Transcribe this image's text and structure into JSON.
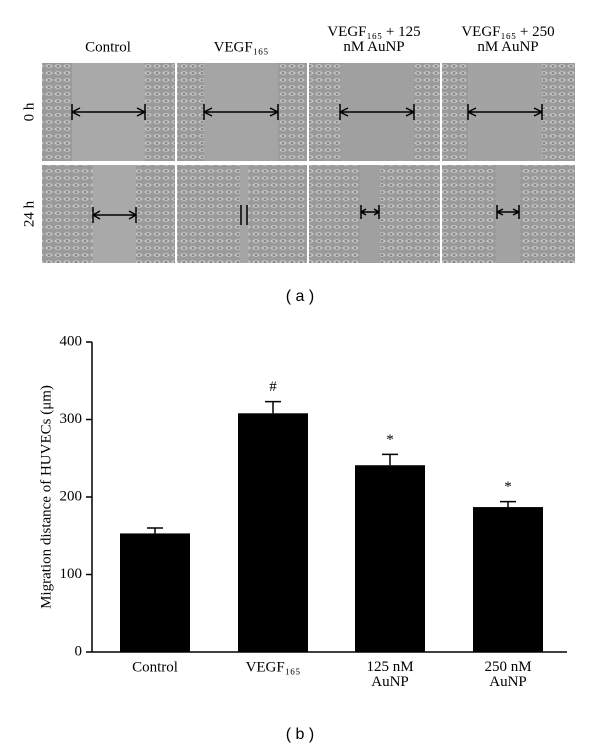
{
  "panel_a": {
    "columns": [
      "Control",
      "VEGF₁₆₅",
      "VEGF₁₆₅ + 125\nnM AuNP",
      "VEGF₁₆₅ + 250\nnM AuNP"
    ],
    "rows": [
      "0 h",
      "24 h"
    ],
    "caption": "( a )"
  },
  "chart_data": {
    "type": "bar",
    "y_label": "Migration distance of HUVECs (μm)",
    "categories": [
      "Control",
      "VEGF₁₆₅",
      "125 nM\nAuNP",
      "250 nM\nAuNP"
    ],
    "values": [
      153,
      308,
      241,
      187
    ],
    "errors": [
      7,
      15,
      14,
      7
    ],
    "color": "#000000",
    "annotations": [
      {
        "x": "VEGF₁₆₅",
        "text": "#"
      },
      {
        "x": "125 nM\nAuNP",
        "text": "*"
      },
      {
        "x": "250 nM\nAuNP",
        "text": "*"
      }
    ],
    "ylim": [
      0,
      400
    ],
    "yticks": [
      0,
      100,
      200,
      300,
      400
    ],
    "grid": false
  },
  "caption_b": "( b )"
}
